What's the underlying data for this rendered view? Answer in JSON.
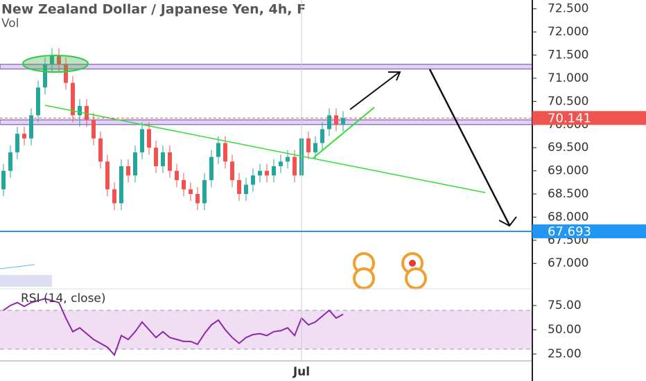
{
  "chart_data": {
    "type": "candlestick",
    "title": "New Zealand Dollar / Japanese Yen, 4h, F",
    "subtitle": "Vol",
    "categories": [
      null,
      null,
      null,
      null,
      null,
      null,
      null,
      null,
      null,
      null,
      null,
      null,
      null,
      null,
      null,
      null,
      null,
      null,
      null,
      null,
      null,
      null,
      null,
      null,
      null,
      null,
      null,
      null,
      null,
      null,
      null,
      null,
      null,
      null,
      null,
      null,
      null,
      null,
      null,
      null,
      null,
      null,
      null,
      "Jul",
      null,
      null,
      null,
      null,
      null,
      null
    ],
    "open": [
      68.6,
      69.0,
      69.4,
      69.8,
      69.7,
      70.2,
      70.8,
      71.3,
      71.5,
      71.3,
      70.9,
      70.2,
      70.4,
      70.1,
      69.7,
      69.2,
      68.6,
      68.3,
      69.1,
      68.9,
      69.4,
      69.9,
      69.5,
      69.1,
      69.4,
      69.0,
      68.8,
      68.6,
      68.5,
      68.3,
      68.8,
      69.3,
      69.6,
      69.2,
      68.8,
      68.5,
      68.7,
      68.9,
      69.0,
      68.9,
      69.1,
      69.2,
      69.3,
      68.9,
      69.7,
      69.4,
      69.6,
      69.9,
      70.2,
      70.0
    ],
    "high": [
      69.15,
      69.55,
      69.95,
      69.95,
      70.35,
      70.95,
      71.45,
      71.65,
      71.65,
      71.45,
      71.05,
      70.55,
      70.55,
      70.25,
      69.85,
      69.35,
      68.75,
      69.25,
      69.25,
      69.55,
      70.05,
      70.05,
      69.65,
      69.55,
      69.55,
      69.15,
      68.95,
      68.75,
      68.65,
      68.95,
      69.45,
      69.75,
      69.75,
      69.35,
      68.95,
      68.85,
      69.05,
      69.15,
      69.15,
      69.25,
      69.35,
      69.45,
      69.45,
      69.85,
      69.85,
      69.75,
      70.05,
      70.35,
      70.35,
      70.29
    ],
    "low": [
      68.45,
      68.85,
      69.25,
      69.55,
      69.55,
      70.05,
      70.65,
      71.15,
      71.15,
      70.75,
      70.05,
      69.95,
      69.95,
      69.55,
      69.05,
      68.45,
      68.15,
      68.15,
      68.75,
      68.75,
      69.25,
      69.35,
      68.95,
      68.95,
      68.85,
      68.65,
      68.45,
      68.35,
      68.15,
      68.15,
      68.65,
      69.15,
      69.05,
      68.65,
      68.35,
      68.35,
      68.55,
      68.75,
      68.75,
      68.75,
      68.95,
      69.05,
      68.75,
      68.75,
      69.25,
      69.25,
      69.45,
      69.75,
      69.85,
      69.85
    ],
    "close": [
      69.0,
      69.4,
      69.8,
      69.7,
      70.2,
      70.8,
      71.3,
      71.5,
      71.3,
      70.9,
      70.2,
      70.4,
      70.1,
      69.7,
      69.2,
      68.6,
      68.3,
      69.1,
      68.9,
      69.4,
      69.9,
      69.5,
      69.1,
      69.4,
      69.0,
      68.8,
      68.6,
      68.5,
      68.3,
      68.8,
      69.3,
      69.6,
      69.2,
      68.8,
      68.5,
      68.7,
      68.9,
      69.0,
      68.9,
      69.1,
      69.2,
      69.3,
      68.9,
      69.7,
      69.4,
      69.6,
      69.9,
      70.2,
      70.0,
      70.14
    ],
    "up_color": "#26a69a",
    "down_color": "#ef5350",
    "ylim": [
      66.48,
      72.69
    ],
    "yticks": [
      {
        "value": 67,
        "label": "67.000"
      },
      {
        "value": 67.5,
        "label": "67.500"
      },
      {
        "value": 68,
        "label": "68.000"
      },
      {
        "value": 68.5,
        "label": "68.500"
      },
      {
        "value": 69,
        "label": "69.000"
      },
      {
        "value": 69.5,
        "label": "69.500"
      },
      {
        "value": 70,
        "label": "70.000"
      },
      {
        "value": 70.5,
        "label": "70.500"
      },
      {
        "value": 71,
        "label": "71.000"
      },
      {
        "value": 71.5,
        "label": "71.500"
      },
      {
        "value": 72,
        "label": "72.000"
      },
      {
        "value": 72.5,
        "label": "72.500"
      }
    ],
    "zones": [
      [
        71.2,
        71.3
      ],
      [
        70.0,
        70.1
      ]
    ],
    "zone_color": "#9575cd",
    "last_price": 70.141,
    "last_price_color": "#ef5350",
    "alert_price": 67.693,
    "alert_color": "#2196f3",
    "indicator": {
      "type": "line",
      "title": "RSI (14, close)",
      "color": "#8e24aa",
      "values": [
        70,
        75,
        78,
        74,
        78,
        80,
        82,
        80,
        78,
        62,
        48,
        52,
        46,
        40,
        36,
        32,
        24,
        44,
        40,
        48,
        58,
        50,
        42,
        48,
        42,
        40,
        38,
        38,
        35,
        46,
        55,
        60,
        50,
        42,
        36,
        42,
        45,
        46,
        44,
        48,
        49,
        52,
        44,
        62,
        55,
        58,
        64,
        70,
        62,
        66
      ],
      "ylim": [
        18.6,
        91.4
      ],
      "yticks": [
        {
          "value": 25,
          "label": "25.00"
        },
        {
          "value": 50,
          "label": "50.00"
        },
        {
          "value": 75,
          "label": "75.00"
        }
      ],
      "band": [
        30,
        70
      ]
    }
  }
}
